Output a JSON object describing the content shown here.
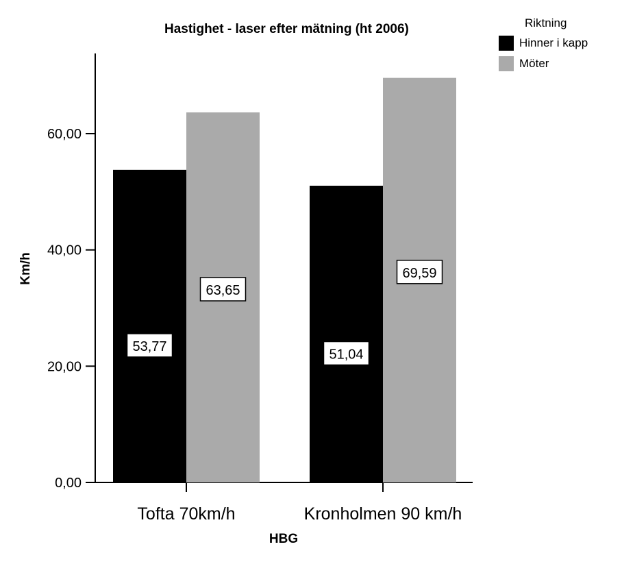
{
  "chart_data": {
    "type": "bar",
    "title": "Hastighet - laser efter mätning (ht 2006)",
    "xlabel": "HBG",
    "ylabel": "Km/h",
    "categories": [
      "Tofta 70km/h",
      "Kronholmen 90 km/h"
    ],
    "series": [
      {
        "name": "Hinner i kapp",
        "values": [
          53.77,
          51.04
        ],
        "labels": [
          "53,77",
          "51,04"
        ],
        "color": "#000000"
      },
      {
        "name": "Möter",
        "values": [
          63.65,
          69.59
        ],
        "labels": [
          "63,65",
          "69,59"
        ],
        "color": "#aaaaaa"
      }
    ],
    "ylim": [
      0,
      70
    ],
    "yticks": [
      0,
      20,
      40,
      60
    ],
    "ytick_labels": [
      "0,00",
      "20,00",
      "40,00",
      "60,00"
    ],
    "legend": {
      "title": "Riktning",
      "position": "top-right"
    },
    "grid": false
  }
}
